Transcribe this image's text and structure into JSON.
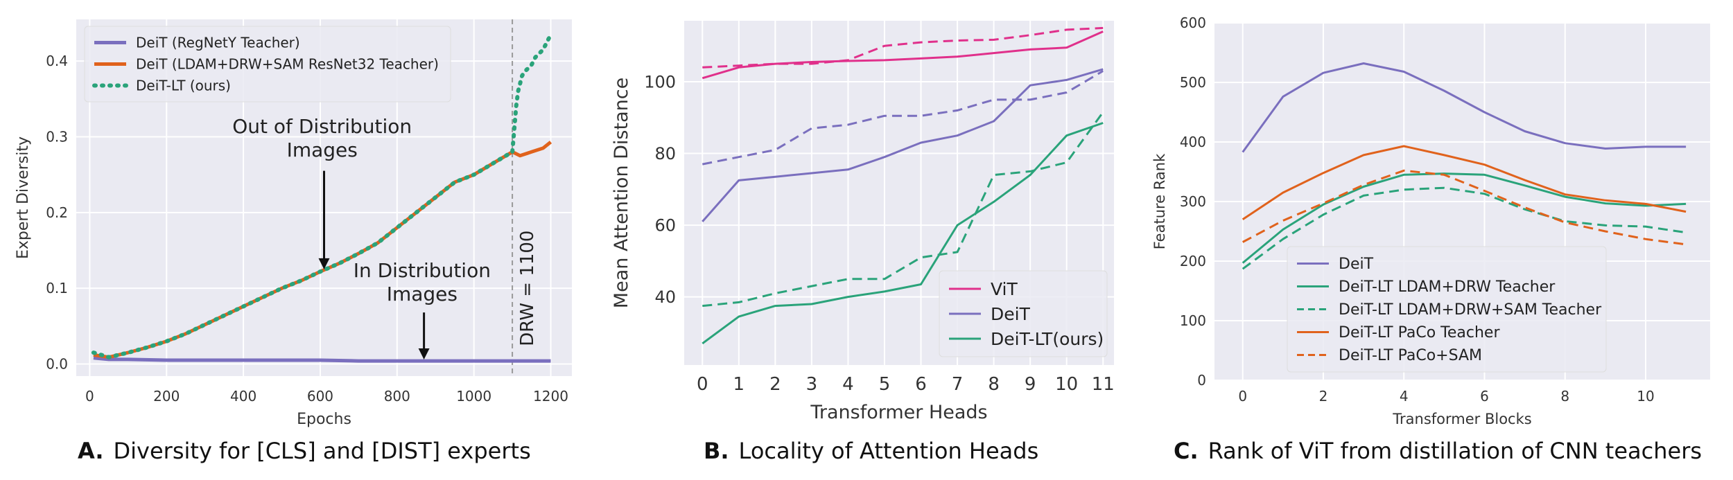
{
  "chart_data": [
    {
      "type": "line",
      "panel": "A",
      "caption_letter": "A.",
      "caption": "Diversity for [CLS] and [DIST] experts",
      "xlabel": "Epochs",
      "ylabel": "Expert Diversity",
      "xlim": [
        -35,
        1255
      ],
      "ylim": [
        -0.016,
        0.455
      ],
      "xticks": [
        0,
        200,
        400,
        600,
        800,
        1000,
        1200
      ],
      "yticks": [
        0.0,
        0.1,
        0.2,
        0.3,
        0.4
      ],
      "ytick_labels": [
        "0.0",
        "0.1",
        "0.2",
        "0.3",
        "0.4"
      ],
      "grid": true,
      "legend": "top-left",
      "vline": {
        "x": 1100,
        "label": "DRW = 1100"
      },
      "annotations": [
        {
          "text": [
            "Out of Distribution",
            "Images"
          ],
          "arrow_to": [
            610,
            0.125
          ]
        },
        {
          "text": [
            "In Distribution",
            "Images"
          ],
          "arrow_to": [
            870,
            0.006
          ]
        }
      ],
      "series": [
        {
          "name": "DeiT (RegNetY Teacher)",
          "color": "#7a6fbe",
          "style": "solid",
          "width": 5,
          "x": [
            10,
            50,
            100,
            200,
            300,
            400,
            500,
            600,
            700,
            800,
            900,
            1000,
            1100,
            1200
          ],
          "y": [
            0.008,
            0.006,
            0.006,
            0.005,
            0.005,
            0.005,
            0.005,
            0.005,
            0.004,
            0.004,
            0.004,
            0.004,
            0.004,
            0.004
          ]
        },
        {
          "name": "DeiT (LDAM+DRW+SAM ResNet32 Teacher)",
          "color": "#e0621c",
          "style": "solid",
          "width": 5,
          "x": [
            10,
            50,
            100,
            150,
            200,
            250,
            300,
            350,
            400,
            450,
            500,
            550,
            600,
            650,
            700,
            750,
            800,
            850,
            900,
            950,
            1000,
            1050,
            1100,
            1120,
            1150,
            1180,
            1200
          ],
          "y": [
            0.012,
            0.009,
            0.015,
            0.022,
            0.03,
            0.04,
            0.052,
            0.064,
            0.076,
            0.088,
            0.1,
            0.11,
            0.122,
            0.133,
            0.146,
            0.16,
            0.18,
            0.2,
            0.22,
            0.24,
            0.25,
            0.265,
            0.28,
            0.275,
            0.28,
            0.285,
            0.293
          ]
        },
        {
          "name": "DeiT-LT (ours)",
          "color": "#2aa37a",
          "style": "dotted",
          "width": 6,
          "x": [
            10,
            50,
            100,
            150,
            200,
            250,
            300,
            350,
            400,
            450,
            500,
            550,
            600,
            650,
            700,
            750,
            800,
            850,
            900,
            950,
            1000,
            1050,
            1100,
            1105,
            1110,
            1115,
            1120,
            1125,
            1130,
            1140,
            1150,
            1160,
            1170,
            1180,
            1190,
            1200
          ],
          "y": [
            0.015,
            0.009,
            0.015,
            0.022,
            0.03,
            0.04,
            0.052,
            0.064,
            0.076,
            0.088,
            0.1,
            0.11,
            0.122,
            0.133,
            0.146,
            0.16,
            0.18,
            0.2,
            0.22,
            0.24,
            0.25,
            0.265,
            0.28,
            0.31,
            0.34,
            0.36,
            0.37,
            0.38,
            0.385,
            0.39,
            0.395,
            0.405,
            0.41,
            0.415,
            0.425,
            0.435
          ]
        }
      ]
    },
    {
      "type": "line",
      "panel": "B",
      "caption_letter": "B.",
      "caption": "Locality of Attention Heads",
      "xlabel": "Transformer Heads",
      "ylabel": "Mean Attention Distance",
      "xlim": [
        -0.5,
        11.3
      ],
      "ylim": [
        21,
        117
      ],
      "categories": [
        "0",
        "1",
        "2",
        "3",
        "4",
        "5",
        "6",
        "7",
        "8",
        "9",
        "10",
        "11"
      ],
      "yticks": [
        40,
        60,
        80,
        100
      ],
      "ytick_labels": [
        "40",
        "60",
        "80",
        "100"
      ],
      "grid": true,
      "legend": "bottom-right",
      "legend_order": [
        0,
        2,
        4
      ],
      "series": [
        {
          "name": "ViT",
          "color": "#e0308b",
          "style": "solid",
          "values": [
            101,
            104,
            105,
            105.5,
            105.8,
            106,
            106.5,
            107,
            108,
            109,
            109.5,
            114
          ]
        },
        {
          "name": "",
          "color": "#e0308b",
          "style": "dashed",
          "values": [
            104,
            104.5,
            105,
            105,
            106,
            110,
            111,
            111.5,
            111.7,
            113,
            114.5,
            115
          ]
        },
        {
          "name": "DeiT",
          "color": "#7a6fbe",
          "style": "solid",
          "values": [
            61,
            72.5,
            73.5,
            74.5,
            75.5,
            79,
            83,
            85,
            89,
            99,
            100.5,
            103.5
          ]
        },
        {
          "name": "",
          "color": "#7a6fbe",
          "style": "dashed",
          "values": [
            77,
            79,
            81,
            87,
            88,
            90.5,
            90.5,
            92,
            95,
            95,
            97,
            103
          ]
        },
        {
          "name": "DeiT-LT(ours)",
          "color": "#2aa37a",
          "style": "solid",
          "values": [
            27,
            34.5,
            37.5,
            38,
            40,
            41.5,
            43.5,
            60,
            66.5,
            74,
            85,
            88.5
          ]
        },
        {
          "name": "",
          "color": "#2aa37a",
          "style": "dashed",
          "values": [
            37.5,
            38.5,
            41,
            43,
            45,
            45,
            51,
            52.5,
            74,
            75,
            77.5,
            91.5
          ]
        }
      ]
    },
    {
      "type": "line",
      "panel": "C",
      "caption_letter": "C.",
      "caption": "Rank of ViT from distillation of CNN teachers",
      "xlabel": "Transformer Blocks",
      "ylabel": "Feature Rank",
      "xlim": [
        -0.7,
        11.6
      ],
      "ylim": [
        0,
        600
      ],
      "x": [
        0,
        1,
        2,
        3,
        4,
        5,
        6,
        7,
        8,
        9,
        10,
        11
      ],
      "xticks": [
        0,
        2,
        4,
        6,
        8,
        10
      ],
      "yticks": [
        0,
        100,
        200,
        300,
        400,
        500,
        600
      ],
      "ytick_labels": [
        "0",
        "100",
        "200",
        "300",
        "400",
        "500",
        "600"
      ],
      "grid": true,
      "legend": "bottom-left",
      "series": [
        {
          "name": "DeiT",
          "color": "#7a6fbe",
          "style": "solid",
          "values": [
            383,
            476,
            516,
            532,
            518,
            486,
            450,
            418,
            398,
            389,
            392,
            392
          ]
        },
        {
          "name": "DeiT-LT LDAM+DRW Teacher",
          "color": "#2aa37a",
          "style": "solid",
          "values": [
            197,
            253,
            295,
            325,
            345,
            347,
            345,
            327,
            308,
            297,
            293,
            296
          ]
        },
        {
          "name": "DeiT-LT LDAM+DRW+SAM Teacher",
          "color": "#2aa37a",
          "style": "dashed",
          "values": [
            187,
            237,
            278,
            310,
            320,
            323,
            313,
            287,
            267,
            260,
            258,
            248
          ]
        },
        {
          "name": "DeiT-LT PaCo Teacher",
          "color": "#e0621c",
          "style": "solid",
          "values": [
            270,
            315,
            348,
            378,
            393,
            378,
            362,
            336,
            312,
            302,
            296,
            283
          ]
        },
        {
          "name": "DeiT-LT PaCo+SAM",
          "color": "#e0621c",
          "style": "dashed",
          "values": [
            232,
            268,
            297,
            328,
            352,
            345,
            318,
            290,
            265,
            250,
            237,
            228
          ]
        }
      ]
    }
  ]
}
